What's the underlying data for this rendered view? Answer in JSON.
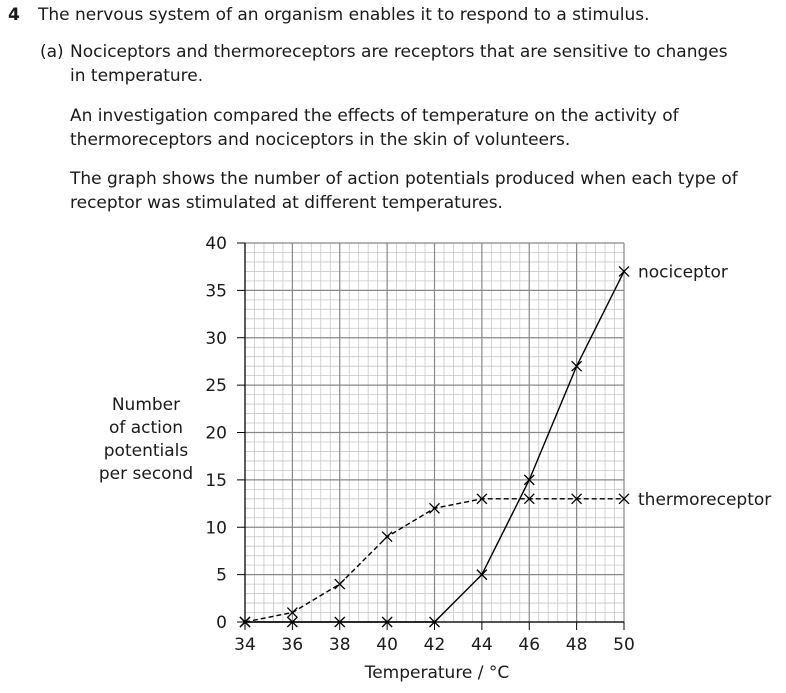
{
  "question": {
    "number": "4",
    "text": "The nervous system of an organism enables it to respond to a stimulus."
  },
  "part": {
    "label": "(a)",
    "paragraphs": [
      [
        "Nociceptors and thermoreceptors are receptors that are sensitive to changes",
        "in temperature."
      ],
      [
        "An investigation compared the effects of temperature on the activity of",
        "thermoreceptors and nociceptors in the skin of volunteers."
      ],
      [
        "The graph shows the number of action potentials produced when each type of",
        "receptor was stimulated at different temperatures."
      ]
    ]
  },
  "chart_data": {
    "type": "line",
    "xlabel": "Temperature / °C",
    "ylabel": [
      "Number",
      "of action",
      "potentials",
      "per second"
    ],
    "x": [
      34,
      36,
      38,
      40,
      42,
      44,
      46,
      48,
      50
    ],
    "series": [
      {
        "name": "nociceptor",
        "color": "#000000",
        "dash": false,
        "values": [
          0,
          0,
          0,
          0,
          0,
          5,
          15,
          27,
          37
        ]
      },
      {
        "name": "thermoreceptor",
        "color": "#000000",
        "dash": true,
        "values": [
          0,
          1,
          4,
          9,
          12,
          13,
          13,
          13,
          13
        ]
      }
    ],
    "xlim": [
      34,
      50
    ],
    "ylim": [
      0,
      40
    ],
    "xticks": [
      34,
      36,
      38,
      40,
      42,
      44,
      46,
      48,
      50
    ],
    "yticks": [
      0,
      5,
      10,
      15,
      20,
      25,
      30,
      35,
      40
    ],
    "grid": true
  }
}
